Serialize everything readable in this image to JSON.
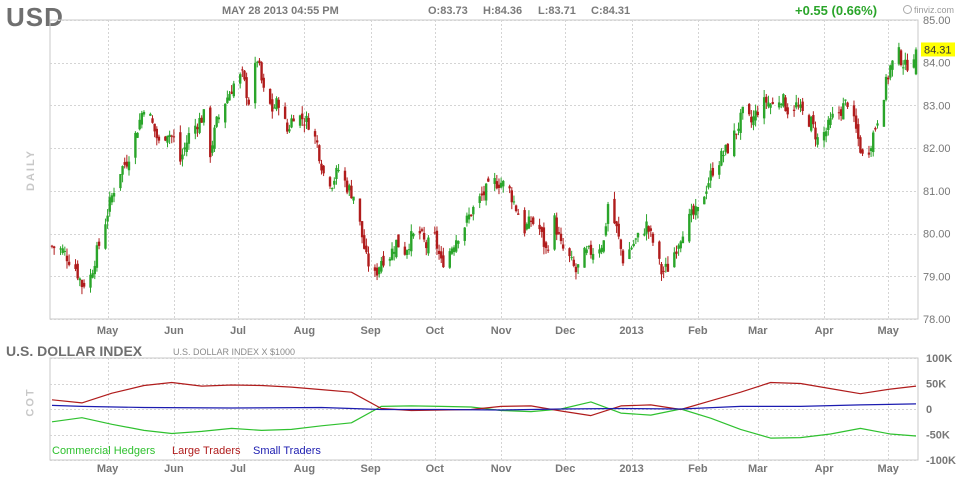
{
  "header": {
    "ticker": "USD",
    "datetime": "MAY 28 2013 04:55 PM",
    "open": "O:83.73",
    "high": "H:84.36",
    "low": "L:83.71",
    "close": "C:84.31",
    "change": "+0.55 (0.66%)",
    "brand": "finviz.com",
    "last_price_tag": "84.31"
  },
  "colors": {
    "up": "#2aa52a",
    "down": "#b01c1c",
    "price_tag_bg": "#ffff00",
    "commercial": "#2fc12f",
    "large": "#b01c1c",
    "small": "#1c1cb0"
  },
  "panels": {
    "price_label": "DAILY",
    "cot_label": "COT"
  },
  "cot": {
    "title": "U.S. DOLLAR INDEX",
    "subtitle": "U.S. DOLLAR INDEX X $1000"
  },
  "chart_data": [
    {
      "type": "candlestick",
      "title": "USD",
      "ylabel": "DAILY",
      "ylim": [
        78.0,
        85.0
      ],
      "y_ticks": [
        "85.00",
        "84.00",
        "83.00",
        "82.00",
        "81.00",
        "80.00",
        "79.00",
        "78.00"
      ],
      "x_ticks": [
        "May",
        "Jun",
        "Jul",
        "Aug",
        "Sep",
        "Oct",
        "Nov",
        "Dec",
        "2013",
        "Feb",
        "Mar",
        "Apr",
        "May"
      ],
      "grid": true,
      "last_close": 84.31,
      "close_path": [
        [
          "2012-04-19",
          79.7
        ],
        [
          "2012-04-24",
          79.6
        ],
        [
          "2012-04-30",
          79.2
        ],
        [
          "2012-05-03",
          78.8
        ],
        [
          "2012-05-07",
          79.0
        ],
        [
          "2012-05-09",
          79.4
        ],
        [
          "2012-05-12",
          79.9
        ],
        [
          "2012-05-16",
          80.7
        ],
        [
          "2012-05-20",
          81.4
        ],
        [
          "2012-05-24",
          81.7
        ],
        [
          "2012-05-28",
          82.3
        ],
        [
          "2012-06-01",
          83.0
        ],
        [
          "2012-06-04",
          82.7
        ],
        [
          "2012-06-08",
          82.1
        ],
        [
          "2012-06-12",
          82.4
        ],
        [
          "2012-06-15",
          82.2
        ],
        [
          "2012-06-18",
          81.7
        ],
        [
          "2012-06-22",
          82.3
        ],
        [
          "2012-06-26",
          82.6
        ],
        [
          "2012-06-30",
          82.8
        ],
        [
          "2012-07-02",
          81.9
        ],
        [
          "2012-07-05",
          82.6
        ],
        [
          "2012-07-09",
          83.1
        ],
        [
          "2012-07-13",
          83.5
        ],
        [
          "2012-07-17",
          83.7
        ],
        [
          "2012-07-20",
          83.1
        ],
        [
          "2012-07-24",
          84.1
        ],
        [
          "2012-07-27",
          83.3
        ],
        [
          "2012-07-31",
          82.9
        ],
        [
          "2012-08-03",
          83.1
        ],
        [
          "2012-08-07",
          82.4
        ],
        [
          "2012-08-10",
          82.8
        ],
        [
          "2012-08-14",
          82.7
        ],
        [
          "2012-08-17",
          82.6
        ],
        [
          "2012-08-21",
          82.1
        ],
        [
          "2012-08-24",
          81.4
        ],
        [
          "2012-08-28",
          81.2
        ],
        [
          "2012-08-31",
          81.5
        ],
        [
          "2012-09-04",
          81.1
        ],
        [
          "2012-09-07",
          80.9
        ],
        [
          "2012-09-10",
          80.2
        ],
        [
          "2012-09-13",
          79.4
        ],
        [
          "2012-09-17",
          79.0
        ],
        [
          "2012-09-20",
          79.4
        ],
        [
          "2012-09-24",
          79.5
        ],
        [
          "2012-09-27",
          79.8
        ],
        [
          "2012-10-01",
          79.6
        ],
        [
          "2012-10-04",
          79.9
        ],
        [
          "2012-10-08",
          80.0
        ],
        [
          "2012-10-11",
          79.7
        ],
        [
          "2012-10-15",
          79.9
        ],
        [
          "2012-10-18",
          79.3
        ],
        [
          "2012-10-22",
          79.6
        ],
        [
          "2012-10-25",
          79.9
        ],
        [
          "2012-10-29",
          80.2
        ],
        [
          "2012-11-01",
          80.5
        ],
        [
          "2012-11-05",
          80.8
        ],
        [
          "2012-11-08",
          81.0
        ],
        [
          "2012-11-12",
          81.2
        ],
        [
          "2012-11-15",
          81.2
        ],
        [
          "2012-11-19",
          81.0
        ],
        [
          "2012-11-22",
          80.6
        ],
        [
          "2012-11-26",
          80.1
        ],
        [
          "2012-11-29",
          80.3
        ],
        [
          "2012-12-03",
          80.1
        ],
        [
          "2012-12-06",
          79.6
        ],
        [
          "2012-12-10",
          80.3
        ],
        [
          "2012-12-13",
          79.7
        ],
        [
          "2012-12-17",
          79.4
        ],
        [
          "2012-12-20",
          79.1
        ],
        [
          "2012-12-24",
          79.5
        ],
        [
          "2012-12-28",
          79.6
        ],
        [
          "2013-01-02",
          79.8
        ],
        [
          "2013-01-04",
          80.7
        ],
        [
          "2013-01-08",
          80.1
        ],
        [
          "2013-01-11",
          79.4
        ],
        [
          "2013-01-15",
          79.7
        ],
        [
          "2013-01-18",
          79.9
        ],
        [
          "2013-01-22",
          80.2
        ],
        [
          "2013-01-25",
          79.8
        ],
        [
          "2013-01-29",
          79.1
        ],
        [
          "2013-02-01",
          79.2
        ],
        [
          "2013-02-05",
          79.7
        ],
        [
          "2013-02-08",
          80.1
        ],
        [
          "2013-02-12",
          80.4
        ],
        [
          "2013-02-15",
          80.5
        ],
        [
          "2013-02-19",
          81.1
        ],
        [
          "2013-02-22",
          81.5
        ],
        [
          "2013-02-26",
          81.8
        ],
        [
          "2013-03-01",
          82.0
        ],
        [
          "2013-03-05",
          82.4
        ],
        [
          "2013-03-08",
          82.8
        ],
        [
          "2013-03-12",
          82.6
        ],
        [
          "2013-03-15",
          82.9
        ],
        [
          "2013-03-19",
          83.1
        ],
        [
          "2013-03-22",
          83.0
        ],
        [
          "2013-03-26",
          83.2
        ],
        [
          "2013-03-29",
          82.9
        ],
        [
          "2013-04-02",
          83.0
        ],
        [
          "2013-04-05",
          82.8
        ],
        [
          "2013-04-09",
          82.6
        ],
        [
          "2013-04-12",
          82.2
        ],
        [
          "2013-04-16",
          82.4
        ],
        [
          "2013-04-19",
          82.7
        ],
        [
          "2013-04-23",
          82.9
        ],
        [
          "2013-04-26",
          83.1
        ],
        [
          "2013-04-30",
          82.4
        ],
        [
          "2013-05-03",
          81.8
        ],
        [
          "2013-05-06",
          82.0
        ],
        [
          "2013-05-09",
          82.5
        ],
        [
          "2013-05-13",
          83.3
        ],
        [
          "2013-05-16",
          83.9
        ],
        [
          "2013-05-20",
          84.2
        ],
        [
          "2013-05-23",
          83.9
        ],
        [
          "2013-05-28",
          84.31
        ]
      ]
    },
    {
      "type": "line",
      "title": "U.S. DOLLAR INDEX",
      "subtitle": "U.S. DOLLAR INDEX X $1000",
      "ylabel": "COT",
      "ylim": [
        -100000,
        100000
      ],
      "y_ticks": [
        "100K",
        "50K",
        "0",
        "-50K",
        "-100K"
      ],
      "x_ticks": [
        "May",
        "Jun",
        "Jul",
        "Aug",
        "Sep",
        "Oct",
        "Nov",
        "Dec",
        "2013",
        "Feb",
        "Mar",
        "Apr",
        "May"
      ],
      "grid": true,
      "legend_position": "bottom-left",
      "series": [
        {
          "name": "Commercial Hedgers",
          "points": [
            [
              "2012-04-19",
              -25000
            ],
            [
              "2012-05-03",
              -17000
            ],
            [
              "2012-05-17",
              -30000
            ],
            [
              "2012-06-01",
              -42000
            ],
            [
              "2012-06-14",
              -48000
            ],
            [
              "2012-06-28",
              -44000
            ],
            [
              "2012-07-12",
              -38000
            ],
            [
              "2012-07-26",
              -42000
            ],
            [
              "2012-08-09",
              -40000
            ],
            [
              "2012-08-23",
              -33000
            ],
            [
              "2012-09-06",
              -27000
            ],
            [
              "2012-09-20",
              5000
            ],
            [
              "2012-10-04",
              6000
            ],
            [
              "2012-10-18",
              5000
            ],
            [
              "2012-11-01",
              4000
            ],
            [
              "2012-11-15",
              -3000
            ],
            [
              "2012-11-29",
              -5000
            ],
            [
              "2012-12-13",
              0
            ],
            [
              "2012-12-27",
              14000
            ],
            [
              "2013-01-10",
              -8000
            ],
            [
              "2013-01-24",
              -12000
            ],
            [
              "2013-02-07",
              0
            ],
            [
              "2013-02-21",
              -18000
            ],
            [
              "2013-03-07",
              -40000
            ],
            [
              "2013-03-21",
              -57000
            ],
            [
              "2013-04-04",
              -56000
            ],
            [
              "2013-04-18",
              -49000
            ],
            [
              "2013-05-02",
              -38000
            ],
            [
              "2013-05-16",
              -49000
            ],
            [
              "2013-05-28",
              -53000
            ]
          ]
        },
        {
          "name": "Large Traders",
          "points": [
            [
              "2012-04-19",
              18000
            ],
            [
              "2012-05-03",
              12000
            ],
            [
              "2012-05-17",
              31000
            ],
            [
              "2012-06-01",
              46000
            ],
            [
              "2012-06-14",
              52000
            ],
            [
              "2012-06-28",
              45000
            ],
            [
              "2012-07-12",
              47000
            ],
            [
              "2012-07-26",
              46000
            ],
            [
              "2012-08-09",
              43000
            ],
            [
              "2012-08-23",
              38000
            ],
            [
              "2012-09-06",
              33000
            ],
            [
              "2012-09-20",
              1000
            ],
            [
              "2012-10-04",
              -3000
            ],
            [
              "2012-10-18",
              -2000
            ],
            [
              "2012-11-01",
              -1000
            ],
            [
              "2012-11-15",
              5000
            ],
            [
              "2012-11-29",
              6000
            ],
            [
              "2012-12-13",
              -4000
            ],
            [
              "2012-12-27",
              -13000
            ],
            [
              "2013-01-10",
              6000
            ],
            [
              "2013-01-24",
              8000
            ],
            [
              "2013-02-07",
              -1000
            ],
            [
              "2013-02-21",
              16000
            ],
            [
              "2013-03-07",
              33000
            ],
            [
              "2013-03-21",
              52000
            ],
            [
              "2013-04-04",
              50000
            ],
            [
              "2013-04-18",
              40000
            ],
            [
              "2013-05-02",
              30000
            ],
            [
              "2013-05-16",
              39000
            ],
            [
              "2013-05-28",
              45000
            ]
          ]
        },
        {
          "name": "Small Traders",
          "points": [
            [
              "2012-04-19",
              7000
            ],
            [
              "2012-05-03",
              5000
            ],
            [
              "2012-06-01",
              3000
            ],
            [
              "2012-07-12",
              2000
            ],
            [
              "2012-08-23",
              3000
            ],
            [
              "2012-09-20",
              -1000
            ],
            [
              "2012-10-18",
              -1000
            ],
            [
              "2012-11-15",
              -2000
            ],
            [
              "2012-12-13",
              0
            ],
            [
              "2013-01-10",
              1000
            ],
            [
              "2013-02-07",
              0
            ],
            [
              "2013-03-07",
              5000
            ],
            [
              "2013-04-04",
              5000
            ],
            [
              "2013-05-02",
              8000
            ],
            [
              "2013-05-28",
              10000
            ]
          ]
        }
      ]
    }
  ]
}
